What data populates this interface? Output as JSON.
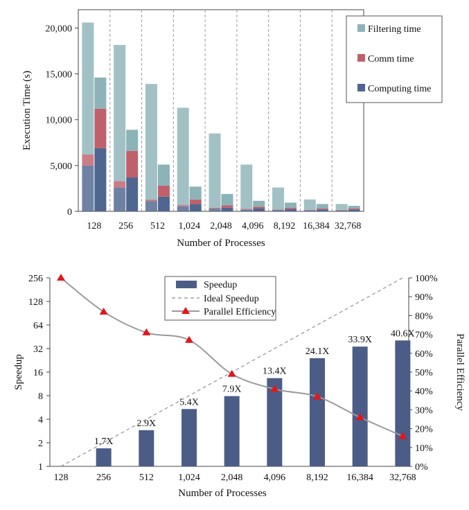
{
  "chart_data": [
    {
      "type": "bar",
      "stacked": true,
      "categories": [
        "128",
        "256",
        "512",
        "1,024",
        "2,048",
        "4,096",
        "8,192",
        "16,384",
        "32,768"
      ],
      "xlabel": "Number of Processes",
      "ylabel": "Execution Time (s)",
      "ylim": [
        0,
        22000
      ],
      "yticks": [
        "0",
        "5,000",
        "10,000",
        "15,000",
        "20,000"
      ],
      "ytick_values": [
        0,
        5000,
        10000,
        15000,
        20000
      ],
      "legend_position": "top-right",
      "bars_per_category": 2,
      "series": [
        {
          "name": "Computing time",
          "color": "#4f6690",
          "left": [
            5000,
            2600,
            1100,
            550,
            300,
            200,
            150,
            120,
            100
          ],
          "right": [
            6900,
            3700,
            1600,
            800,
            400,
            300,
            250,
            200,
            200
          ]
        },
        {
          "name": "Comm time",
          "color": "#c0606b",
          "left": [
            1200,
            700,
            200,
            150,
            100,
            80,
            60,
            50,
            50
          ],
          "right": [
            4300,
            2900,
            1200,
            500,
            250,
            200,
            150,
            100,
            100
          ]
        },
        {
          "name": "Filtering time",
          "color": "#8cb3b8",
          "left": [
            14400,
            14850,
            12600,
            10600,
            8100,
            4820,
            2390,
            1130,
            650
          ],
          "right": [
            3400,
            2300,
            2300,
            1400,
            1250,
            650,
            550,
            500,
            300
          ]
        }
      ]
    },
    {
      "type": "bar",
      "categories": [
        "128",
        "256",
        "512",
        "1,024",
        "2,048",
        "4,096",
        "8,192",
        "16,384",
        "32,768"
      ],
      "xlabel": "Number of Processes",
      "ylabel": "Speedup",
      "ylabel_right": "Parallel Efficiency",
      "yscale": "log2",
      "ylim": [
        1,
        256
      ],
      "yticks": [
        "1",
        "2",
        "4",
        "8",
        "16",
        "32",
        "64",
        "128",
        "256"
      ],
      "ytick_values": [
        1,
        2,
        4,
        8,
        16,
        32,
        64,
        128,
        256
      ],
      "yticks_right": [
        "0%",
        "10%",
        "20%",
        "30%",
        "40%",
        "50%",
        "60%",
        "70%",
        "80%",
        "90%",
        "100%"
      ],
      "ytick_right_values": [
        0,
        10,
        20,
        30,
        40,
        50,
        60,
        70,
        80,
        90,
        100
      ],
      "legend_position": "top-center",
      "speedup": {
        "name": "Speedup",
        "color": "#4b5d86",
        "values": [
          null,
          1.7,
          2.9,
          5.4,
          7.9,
          13.4,
          24.1,
          33.9,
          40.6
        ],
        "labels": [
          "",
          "1.7X",
          "2.9X",
          "5.4X",
          "7.9X",
          "13.4X",
          "24.1X",
          "33.9X",
          "40.6X"
        ]
      },
      "ideal": {
        "name": "Ideal Speedup",
        "color": "#a0a0a0",
        "values": [
          1,
          2,
          4,
          8,
          16,
          32,
          64,
          128,
          256
        ]
      },
      "efficiency": {
        "name": "Parallel Efficiency",
        "color": "#e8131b",
        "line_color": "#9a9a9a",
        "values": [
          100,
          82,
          71,
          67,
          49,
          41,
          37,
          26,
          16
        ]
      }
    }
  ]
}
